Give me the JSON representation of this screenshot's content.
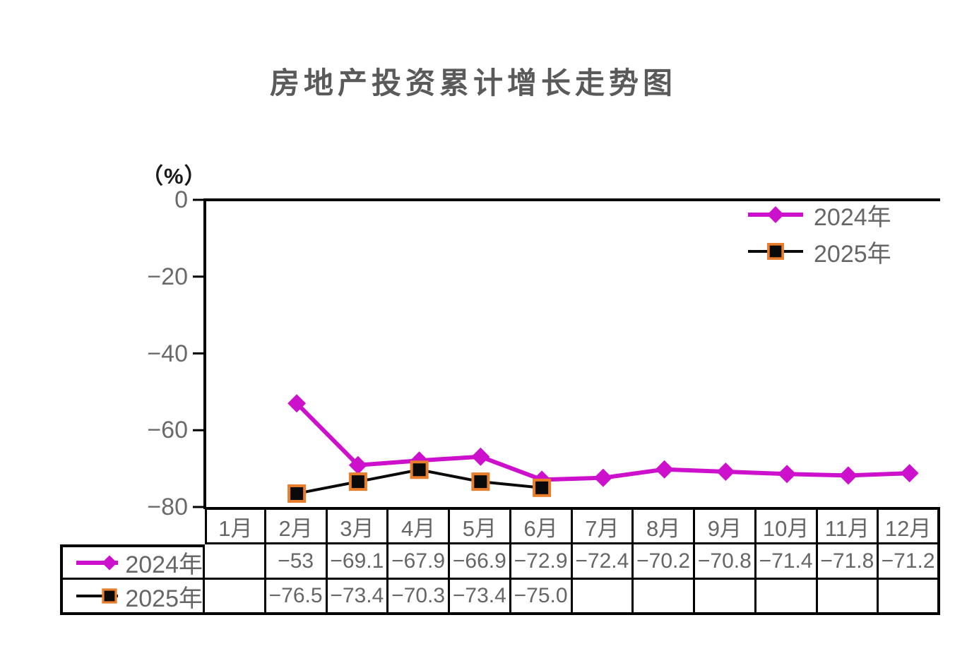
{
  "page": {
    "background": "#ffffff"
  },
  "chart_data": {
    "type": "line",
    "title": "房地产投资累计增长走势图",
    "unit_label": "（%）",
    "categories": [
      "1月",
      "2月",
      "3月",
      "4月",
      "5月",
      "6月",
      "7月",
      "8月",
      "9月",
      "10月",
      "11月",
      "12月"
    ],
    "yticks": [
      0,
      -20,
      -40,
      -60,
      -80
    ],
    "ytick_labels": [
      "0",
      "−20",
      "−40",
      "−60",
      "−80"
    ],
    "ylim": [
      -80,
      0
    ],
    "grid": false,
    "legend_position": "top-right",
    "series": [
      {
        "name": "2024年",
        "color": "#CC10CC",
        "marker": "diamond",
        "line_width": 6,
        "values": [
          null,
          -53,
          -69.1,
          -67.9,
          -66.9,
          -72.9,
          -72.4,
          -70.2,
          -70.8,
          -71.4,
          -71.8,
          -71.2
        ],
        "display": [
          "",
          "−53",
          "−69.1",
          "−67.9",
          "−66.9",
          "−72.9",
          "−72.4",
          "−70.2",
          "−70.8",
          "−71.4",
          "−71.8",
          "−71.2"
        ]
      },
      {
        "name": "2025年",
        "color": "#0a0a0a",
        "marker": "square",
        "marker_border": "#E87D2B",
        "line_width": 4,
        "values": [
          null,
          -76.5,
          -73.4,
          -70.3,
          -73.4,
          -75.0,
          null,
          null,
          null,
          null,
          null,
          null
        ],
        "display": [
          "",
          "−76.5",
          "−73.4",
          "−70.3",
          "−73.4",
          "−75.0",
          "",
          "",
          "",
          "",
          "",
          ""
        ]
      }
    ],
    "colors": {
      "axis": "#000000",
      "table_border": "#000000",
      "tick_text": "#6a6a6a",
      "title_text": "#5a5a5a",
      "cell_text": "#666666"
    }
  }
}
